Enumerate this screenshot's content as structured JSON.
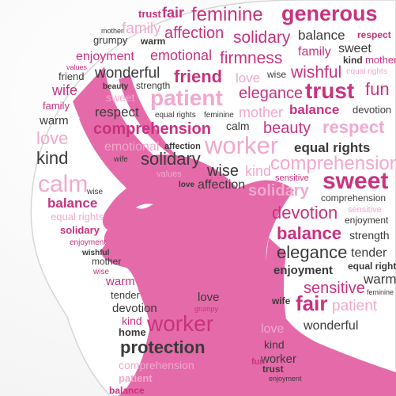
{
  "colors": {
    "magenta": "#c8327f",
    "pink": "#e56aa9",
    "light_pink": "#f0a9cd",
    "pale_pink": "#f6cfe2",
    "gray": "#8a8a8a",
    "dark_gray": "#3a3a3a",
    "white": "#ffffff"
  },
  "words": {
    "w01": "trust",
    "w02": "fair",
    "w03": "feminine",
    "w04": "generous",
    "w05": "mother",
    "w06": "family",
    "w07": "affection",
    "w08": "solidary",
    "w09": "balance",
    "w10": "respect",
    "w11": "grumpy",
    "w12": "warm",
    "w13": "family",
    "w14": "sweet",
    "w15": "enjoyment",
    "w16": "emotional",
    "w17": "firmness",
    "w18": "kind",
    "w19": "mother",
    "w20": "values",
    "w21": "wonderful",
    "w22": "wise",
    "w23": "wishful",
    "w24": "equal rights",
    "w25": "friend",
    "w26": "friend",
    "w27": "love",
    "w28": "beauty",
    "w29": "strength",
    "w30": "trust",
    "w31": "fun",
    "w32": "wife",
    "w33": "sweet",
    "w34": "patient",
    "w35": "elegance",
    "w36": "balance",
    "w37": "devotion",
    "w38": "family",
    "w39": "respect",
    "w40": "equal rights",
    "w41": "feminine",
    "w42": "mother",
    "w43": "warm",
    "w44": "comprehension",
    "w45": "calm",
    "w46": "beauty",
    "w47": "respect",
    "w48": "love",
    "w49": "emotional",
    "w50": "affection",
    "w51": "worker",
    "w52": "equal rights",
    "w53": "kind",
    "w54": "wife",
    "w55": "solidary",
    "w56": "comprehension",
    "w57": "values",
    "w58": "wise",
    "w59": "kind",
    "w60": "sensitive",
    "w61": "sweet",
    "w62": "calm",
    "w63": "love",
    "w64": "affection",
    "w65": "solidary",
    "w66": "comprehension",
    "w67": "wise",
    "w68": "balance",
    "w69": "devotion",
    "w70": "sensitive",
    "w71": "equal rights",
    "w72": "enjoyment",
    "w73": "solidary",
    "w74": "balance",
    "w75": "strength",
    "w76": "enjoyment",
    "w77": "elegance",
    "w78": "tender",
    "w79": "wishful",
    "w80": "enjoyment",
    "w81": "equal rights",
    "w82": "mother",
    "w83": "wise",
    "w84": "warm",
    "w85": "sensitive",
    "w86": "warm",
    "w87": "feminine",
    "w88": "tender",
    "w89": "love",
    "w90": "wife",
    "w91": "fair",
    "w92": "patient",
    "w93": "devotion",
    "w94": "grumpy",
    "w95": "kind",
    "w96": "worker",
    "w97": "home",
    "w98": "wonderful",
    "w99": "protection",
    "w100": "love",
    "w101": "kind",
    "w102": "comprehension",
    "w103": "worker",
    "w104": "patient",
    "w105": "balance",
    "w106": "trust",
    "w107": "enjoyment",
    "w108": "fun"
  }
}
